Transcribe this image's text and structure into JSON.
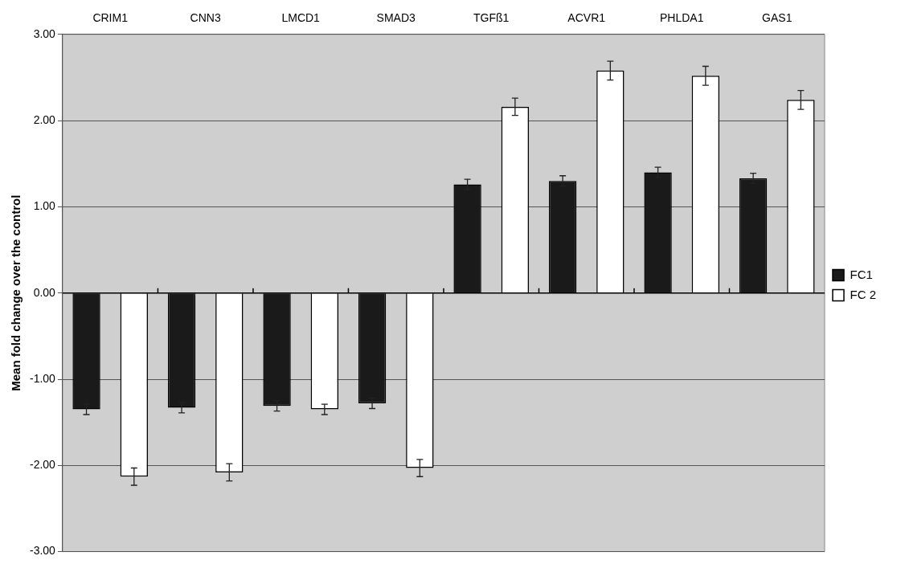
{
  "chart_data": {
    "type": "bar",
    "ylabel": "Mean fold change over the control",
    "categories": [
      "CRIM1",
      "CNN3",
      "LMCD1",
      "SMAD3",
      "TGFß1",
      "ACVR1",
      "PHLDA1",
      "GAS1"
    ],
    "series": [
      {
        "name": "FC1",
        "color": "#1a1a1a",
        "values": [
          -1.35,
          -1.33,
          -1.31,
          -1.28,
          1.26,
          1.3,
          1.4,
          1.33
        ],
        "errors": [
          0.06,
          0.06,
          0.06,
          0.06,
          0.06,
          0.06,
          0.06,
          0.06
        ]
      },
      {
        "name": "FC 2",
        "color": "#ffffff",
        "values": [
          -2.13,
          -2.08,
          -1.35,
          -2.03,
          2.16,
          2.58,
          2.52,
          2.24
        ],
        "errors": [
          0.1,
          0.1,
          0.06,
          0.1,
          0.1,
          0.11,
          0.11,
          0.11
        ]
      }
    ],
    "ylim": [
      -3,
      3
    ],
    "yticks": [
      {
        "value": -3,
        "label": "-3.00"
      },
      {
        "value": -2,
        "label": "-2.00"
      },
      {
        "value": -1,
        "label": "-1.00"
      },
      {
        "value": 0,
        "label": "0.00"
      },
      {
        "value": 1,
        "label": "1.00"
      },
      {
        "value": 2,
        "label": "2.00"
      },
      {
        "value": 3,
        "label": "3.00"
      }
    ],
    "grid": "y",
    "legend": "right"
  }
}
